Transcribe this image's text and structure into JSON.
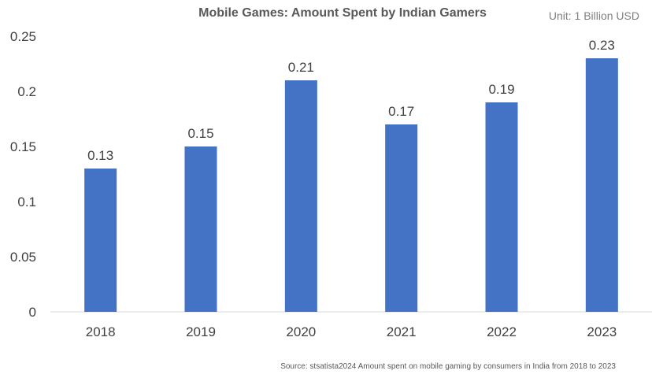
{
  "chart_data": {
    "type": "bar",
    "title": "Mobile Games: Amount Spent by Indian Gamers",
    "unit_label": "Unit: 1 Billion USD",
    "xlabel": "",
    "ylabel": "",
    "categories": [
      "2018",
      "2019",
      "2020",
      "2021",
      "2022",
      "2023"
    ],
    "values": [
      0.13,
      0.15,
      0.21,
      0.17,
      0.19,
      0.23
    ],
    "data_labels": [
      "0.13",
      "0.15",
      "0.21",
      "0.17",
      "0.19",
      "0.23"
    ],
    "ylim": [
      0,
      0.25
    ],
    "yticks": [
      0,
      0.05,
      0.1,
      0.15,
      0.2,
      0.25
    ],
    "ytick_labels": [
      "0",
      "0.05",
      "0.1",
      "0.15",
      "0.2",
      "0.25"
    ],
    "grid": false,
    "legend": "none",
    "bar_color": "#4472C4",
    "axis_color": "#D9D9D9",
    "source": "Source: stsatista2024 Amount spent on mobile gaming by consumers in India from 2018 to 2023"
  }
}
